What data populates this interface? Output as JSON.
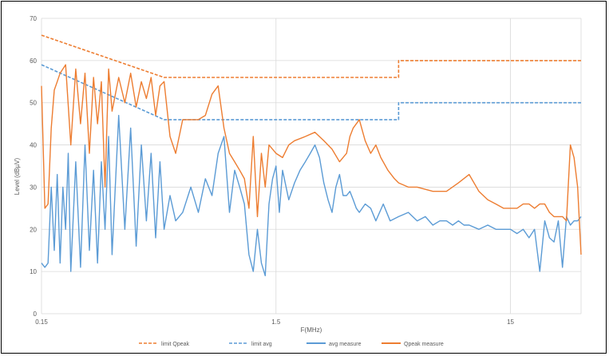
{
  "chart_data": {
    "type": "line",
    "xlabel": "F(MHz)",
    "ylabel": "Level (dBµV)",
    "xscale": "log",
    "xlim": [
      0.15,
      30
    ],
    "ylim": [
      0,
      70
    ],
    "x_ticks": [
      0.15,
      1.5,
      15
    ],
    "x_tick_labels": [
      "0.15",
      "1.5",
      "15"
    ],
    "y_ticks": [
      0,
      10,
      20,
      30,
      40,
      50,
      60,
      70
    ],
    "y_tick_labels": [
      "0",
      "10",
      "20",
      "30",
      "40",
      "50",
      "60",
      "70"
    ],
    "grid": true,
    "legend_position": "bottom",
    "legend": [
      "limit Qpeak",
      "limit avg",
      "avg measure",
      "Qpeak measure"
    ],
    "series": [
      {
        "name": "limit Qpeak",
        "color": "#ED7D31",
        "dash": true,
        "x": [
          0.15,
          0.5,
          5,
          5,
          30
        ],
        "y": [
          66,
          56,
          56,
          60,
          60
        ]
      },
      {
        "name": "limit avg",
        "color": "#5B9BD5",
        "dash": true,
        "x": [
          0.15,
          0.5,
          5,
          5,
          30
        ],
        "y": [
          59,
          46,
          46,
          50,
          50
        ]
      },
      {
        "name": "avg measure",
        "color": "#5B9BD5",
        "dash": false,
        "x": [
          0.15,
          0.155,
          0.16,
          0.165,
          0.17,
          0.175,
          0.18,
          0.185,
          0.19,
          0.195,
          0.2,
          0.21,
          0.22,
          0.23,
          0.24,
          0.25,
          0.26,
          0.27,
          0.28,
          0.29,
          0.3,
          0.32,
          0.34,
          0.36,
          0.38,
          0.4,
          0.42,
          0.44,
          0.46,
          0.48,
          0.5,
          0.53,
          0.56,
          0.6,
          0.65,
          0.7,
          0.75,
          0.8,
          0.85,
          0.9,
          0.95,
          1.0,
          1.05,
          1.1,
          1.15,
          1.2,
          1.25,
          1.3,
          1.35,
          1.4,
          1.45,
          1.5,
          1.55,
          1.6,
          1.7,
          1.8,
          1.9,
          2.0,
          2.1,
          2.2,
          2.3,
          2.4,
          2.5,
          2.6,
          2.7,
          2.8,
          2.9,
          3.0,
          3.1,
          3.2,
          3.3,
          3.4,
          3.6,
          3.8,
          4.0,
          4.3,
          4.6,
          5.0,
          5.5,
          6.0,
          6.5,
          7.0,
          7.5,
          8.0,
          8.5,
          9.0,
          9.5,
          10,
          11,
          12,
          13,
          14,
          15,
          16,
          17,
          18,
          19,
          20,
          21,
          22,
          23,
          24,
          25,
          26,
          27,
          28,
          29,
          30
        ],
        "y": [
          12,
          11,
          12,
          30,
          15,
          33,
          12,
          30,
          20,
          38,
          10,
          36,
          11,
          40,
          15,
          34,
          12,
          36,
          20,
          42,
          14,
          47,
          20,
          44,
          16,
          40,
          22,
          38,
          18,
          36,
          20,
          28,
          22,
          24,
          30,
          24,
          32,
          28,
          38,
          42,
          24,
          34,
          30,
          26,
          14,
          10,
          20,
          12,
          9,
          26,
          32,
          35,
          24,
          34,
          27,
          31,
          34,
          36,
          38,
          40,
          37,
          31,
          27,
          24,
          30,
          33,
          28,
          28,
          29,
          27,
          25,
          24,
          26,
          25,
          22,
          26,
          22,
          23,
          24,
          22,
          23,
          21,
          22,
          22,
          21,
          22,
          21,
          21,
          20,
          21,
          20,
          20,
          20,
          19,
          20,
          18,
          20,
          10,
          22,
          18,
          17,
          22,
          11,
          23,
          21,
          22,
          22,
          23
        ]
      },
      {
        "name": "Qpeak measure",
        "color": "#ED7D31",
        "dash": false,
        "x": [
          0.15,
          0.155,
          0.16,
          0.165,
          0.17,
          0.175,
          0.18,
          0.19,
          0.2,
          0.21,
          0.22,
          0.23,
          0.24,
          0.25,
          0.26,
          0.27,
          0.28,
          0.29,
          0.3,
          0.32,
          0.34,
          0.36,
          0.38,
          0.4,
          0.42,
          0.44,
          0.46,
          0.48,
          0.5,
          0.53,
          0.56,
          0.6,
          0.65,
          0.7,
          0.75,
          0.8,
          0.85,
          0.9,
          0.95,
          1.0,
          1.05,
          1.1,
          1.15,
          1.2,
          1.25,
          1.3,
          1.35,
          1.4,
          1.5,
          1.6,
          1.7,
          1.8,
          2.0,
          2.2,
          2.4,
          2.6,
          2.8,
          3.0,
          3.1,
          3.2,
          3.4,
          3.6,
          3.8,
          4.0,
          4.2,
          4.5,
          4.8,
          5.0,
          5.5,
          6.0,
          7.0,
          8.0,
          9.0,
          10,
          11,
          12,
          13,
          14,
          15,
          16,
          17,
          18,
          19,
          20,
          21,
          22,
          23,
          24,
          25,
          26,
          27,
          28,
          29,
          30
        ],
        "y": [
          54,
          25,
          26,
          44,
          53,
          55,
          57,
          59,
          40,
          58,
          45,
          57,
          38,
          56,
          45,
          55,
          30,
          58,
          48,
          56,
          50,
          57,
          49,
          55,
          51,
          56,
          47,
          54,
          55,
          42,
          38,
          46,
          46,
          46,
          47,
          52,
          54,
          44,
          38,
          36,
          34,
          32,
          25,
          42,
          23,
          38,
          30,
          40,
          38,
          37,
          40,
          41,
          42,
          43,
          41,
          39,
          36,
          38,
          42,
          44,
          46,
          41,
          38,
          40,
          37,
          34,
          32,
          31,
          30,
          30,
          29,
          29,
          31,
          33,
          29,
          27,
          26,
          25,
          25,
          25,
          26,
          26,
          25,
          26,
          26,
          24,
          23,
          23,
          23,
          22,
          40,
          37,
          30,
          14
        ]
      }
    ]
  }
}
